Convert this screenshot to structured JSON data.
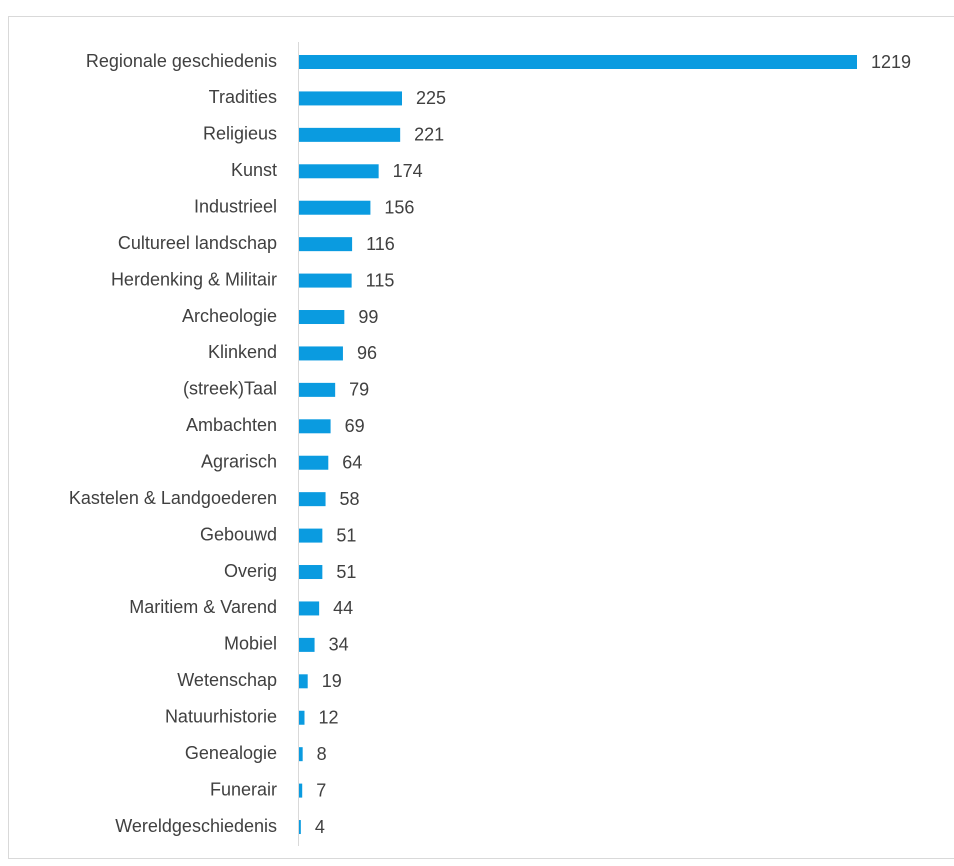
{
  "chart_data": {
    "type": "bar",
    "orientation": "horizontal",
    "color": "#0a9be0",
    "categories": [
      "Regionale geschiedenis",
      "Tradities",
      "Religieus",
      "Kunst",
      "Industrieel",
      "Cultureel landschap",
      "Herdenking & Militair",
      "Archeologie",
      "Klinkend",
      "(streek)Taal",
      "Ambachten",
      "Agrarisch",
      "Kastelen & Landgoederen",
      "Gebouwd",
      "Overig",
      "Maritiem & Varend",
      "Mobiel",
      "Wetenschap",
      "Natuurhistorie",
      "Genealogie",
      "Funerair",
      "Wereldgeschiedenis"
    ],
    "values": [
      1219,
      225,
      221,
      174,
      156,
      116,
      115,
      99,
      96,
      79,
      69,
      64,
      58,
      51,
      51,
      44,
      34,
      19,
      12,
      8,
      7,
      4
    ]
  }
}
